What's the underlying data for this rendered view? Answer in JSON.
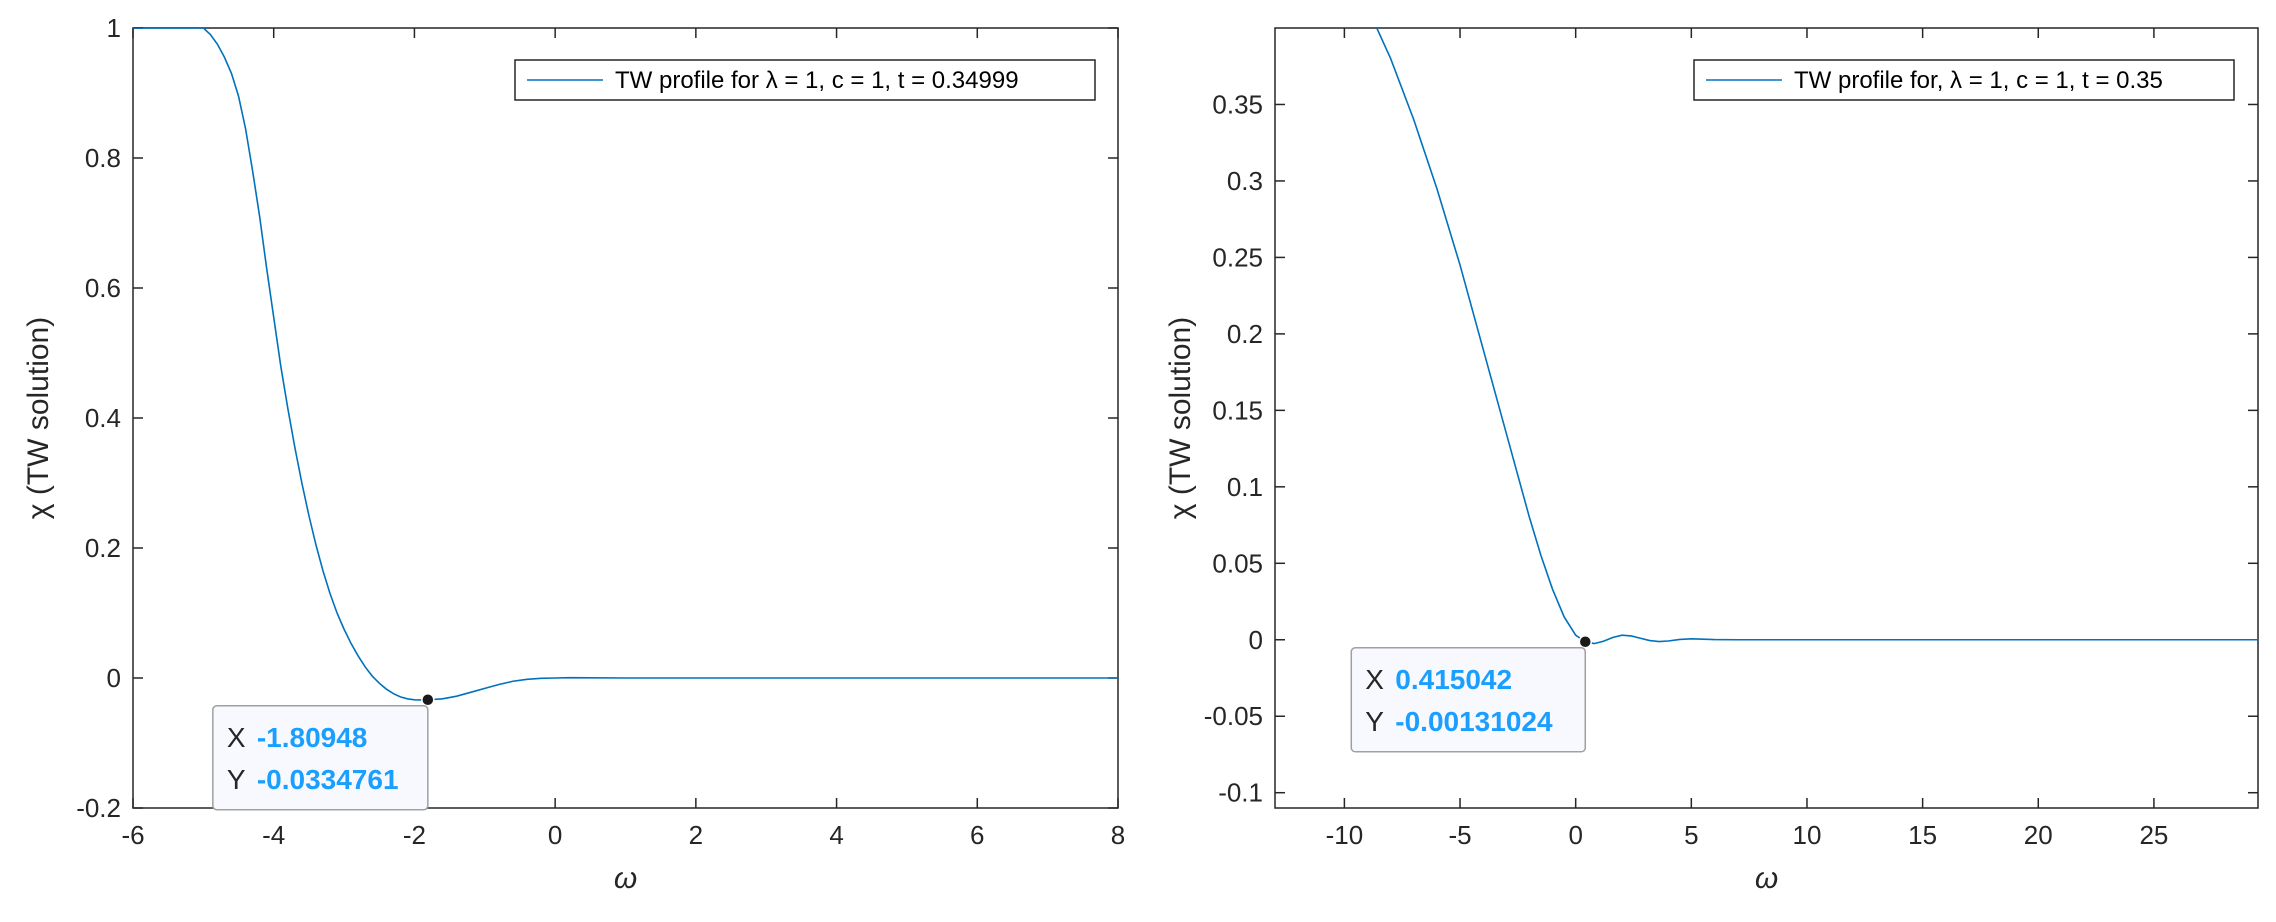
{
  "colors": {
    "series": "#0072BD",
    "datatip_value": "#1A9FFF",
    "axis": "#262626",
    "datatip_bg": "#F8F8FF",
    "datatip_border": "#A0A0A0"
  },
  "chart_data": [
    {
      "type": "line",
      "xlabel": "ω",
      "ylabel": "χ   (TW solution)",
      "xlim": [
        -6,
        8
      ],
      "ylim": [
        -0.2,
        1
      ],
      "xticks": [
        "-6",
        "-4",
        "-2",
        "0",
        "2",
        "4",
        "6",
        "8"
      ],
      "yticks": [
        "-0.2",
        "0",
        "0.2",
        "0.4",
        "0.6",
        "0.8",
        "1"
      ],
      "grid": false,
      "legend_position": "top-right",
      "series": [
        {
          "name": "TW profile for λ = 1, c = 1, t = 0.34999",
          "x": [
            -6,
            -5,
            -4.9,
            -4.8,
            -4.7,
            -4.6,
            -4.5,
            -4.4,
            -4.3,
            -4.2,
            -4.1,
            -4.0,
            -3.9,
            -3.8,
            -3.7,
            -3.6,
            -3.5,
            -3.4,
            -3.3,
            -3.2,
            -3.1,
            -3.0,
            -2.9,
            -2.8,
            -2.7,
            -2.6,
            -2.5,
            -2.4,
            -2.3,
            -2.2,
            -2.1,
            -2.0,
            -1.9,
            -1.8,
            -1.6,
            -1.4,
            -1.2,
            -1.0,
            -0.8,
            -0.6,
            -0.4,
            -0.2,
            0.0,
            0.2,
            0.5,
            1.0,
            2.0,
            3.0,
            4.0,
            5.0,
            6.0,
            7.0,
            8.0
          ],
          "y": [
            1.0,
            1.0,
            0.99,
            0.975,
            0.955,
            0.93,
            0.895,
            0.845,
            0.78,
            0.71,
            0.63,
            0.555,
            0.48,
            0.415,
            0.355,
            0.3,
            0.25,
            0.205,
            0.165,
            0.13,
            0.1,
            0.075,
            0.053,
            0.034,
            0.017,
            0.003,
            -0.008,
            -0.017,
            -0.024,
            -0.029,
            -0.032,
            -0.0335,
            -0.0338,
            -0.0335,
            -0.032,
            -0.028,
            -0.022,
            -0.016,
            -0.01,
            -0.005,
            -0.002,
            -0.0005,
            0.0,
            0.0005,
            0.0003,
            0.0,
            0.0,
            0.0,
            0.0,
            0.0,
            0.0,
            0.0,
            0.0
          ]
        }
      ],
      "datatip": {
        "x": -1.80948,
        "y": -0.0334761,
        "x_key": "X",
        "y_key": "Y",
        "x_text": "-1.80948",
        "y_text": "-0.0334761"
      }
    },
    {
      "type": "line",
      "xlabel": "ω",
      "ylabel": "χ   (TW solution)",
      "xlim": [
        -13,
        29.5
      ],
      "ylim": [
        -0.11,
        0.4
      ],
      "xticks": [
        "-10",
        "-5",
        "0",
        "5",
        "10",
        "15",
        "20",
        "25"
      ],
      "yticks": [
        "-0.1",
        "-0.05",
        "0",
        "0.05",
        "0.1",
        "0.15",
        "0.2",
        "0.25",
        "0.3",
        "0.35"
      ],
      "grid": false,
      "legend_position": "top-right",
      "series": [
        {
          "name": "TW profile for, λ = 1, c = 1, t = 0.35",
          "x": [
            -8.6,
            -8.0,
            -7.0,
            -6.0,
            -5.0,
            -4.0,
            -3.0,
            -2.0,
            -1.5,
            -1.0,
            -0.5,
            0.0,
            0.415,
            0.8,
            1.2,
            1.6,
            2.0,
            2.4,
            2.8,
            3.2,
            3.6,
            4.0,
            4.5,
            5.0,
            5.5,
            6.0,
            7.0,
            8.0,
            10.0,
            15.0,
            20.0,
            25.0,
            29.5
          ],
          "y": [
            0.4,
            0.38,
            0.34,
            0.295,
            0.245,
            0.19,
            0.135,
            0.08,
            0.055,
            0.033,
            0.015,
            0.003,
            -0.0013,
            -0.0025,
            -0.001,
            0.0015,
            0.003,
            0.0025,
            0.001,
            -0.0005,
            -0.0012,
            -0.0008,
            0.0002,
            0.0006,
            0.0004,
            0.0001,
            0.0,
            0.0,
            0.0,
            0.0,
            0.0,
            0.0,
            0.0
          ]
        }
      ],
      "datatip": {
        "x": 0.415042,
        "y": -0.00131024,
        "x_key": "X",
        "y_key": "Y",
        "x_text": "0.415042",
        "y_text": "-0.00131024"
      }
    }
  ]
}
